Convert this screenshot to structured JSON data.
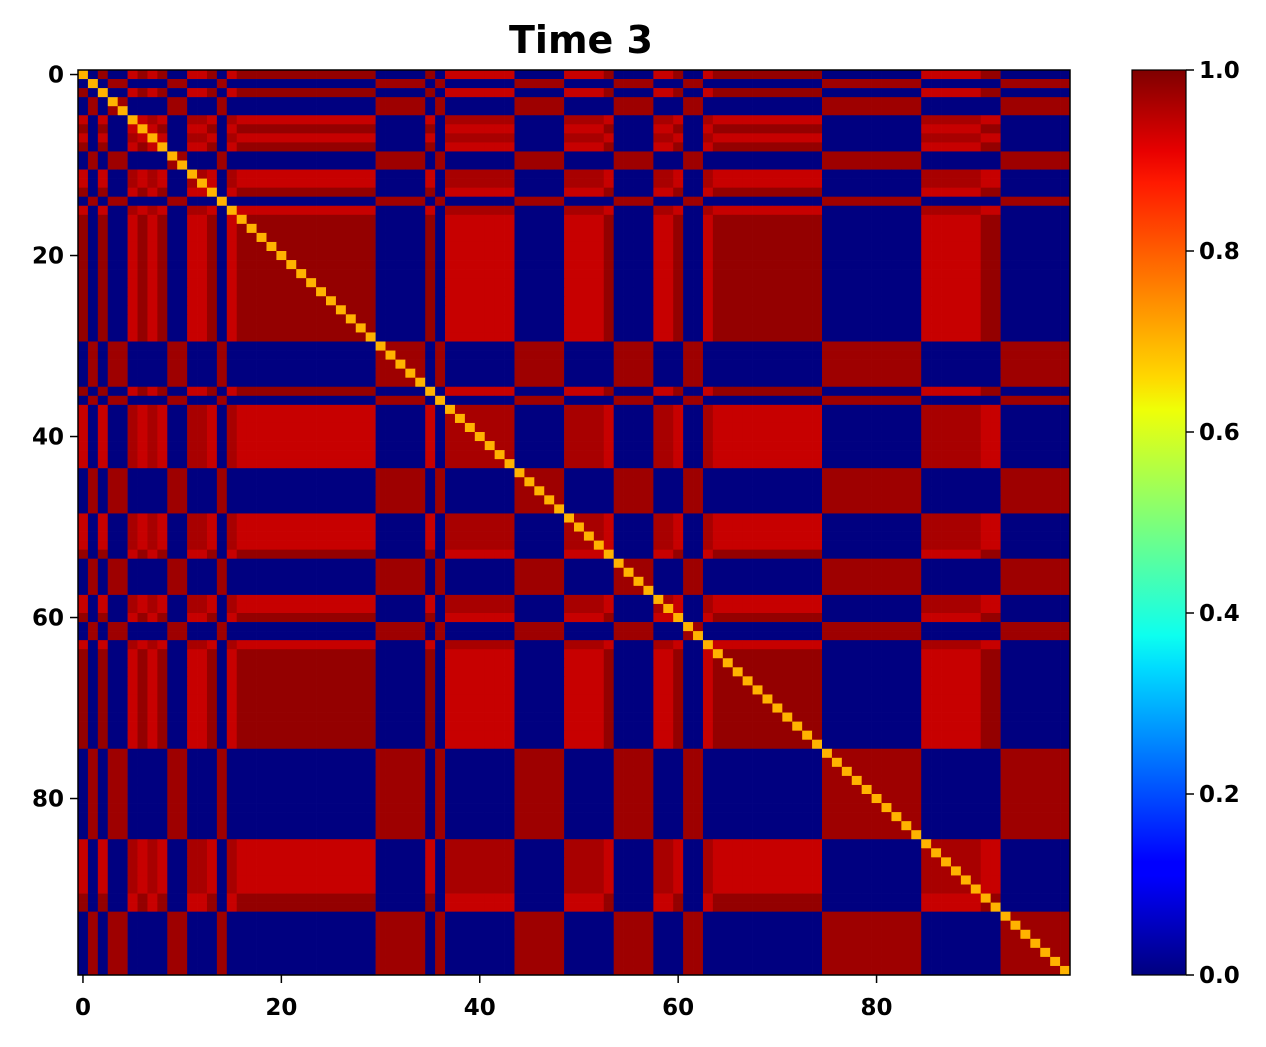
{
  "chart_data": {
    "type": "heatmap",
    "title": "Time 3",
    "xlabel": "",
    "ylabel": "",
    "n": 100,
    "x_ticks": [
      0,
      20,
      40,
      60,
      80
    ],
    "y_ticks": [
      0,
      20,
      40,
      60,
      80
    ],
    "colorbar": {
      "min": 0.0,
      "max": 1.0,
      "ticks": [
        "0.0",
        "0.2",
        "0.4",
        "0.6",
        "0.8",
        "1.0"
      ],
      "colormap": "jet"
    },
    "group_of_index": "0101120201122012000000000000001111101222222211111222201111220112000000000001111111111222222001111111",
    "block_values": {
      "0-0": 0.98,
      "0-1": 0.0,
      "0-2": 0.93,
      "1-1": 0.97,
      "1-2": 0.0,
      "2-2": 0.96,
      "diagonal": 0.7
    },
    "colors": {
      "low": "#00007f",
      "high": "#7f0000",
      "mid_red": "#d40000"
    }
  }
}
